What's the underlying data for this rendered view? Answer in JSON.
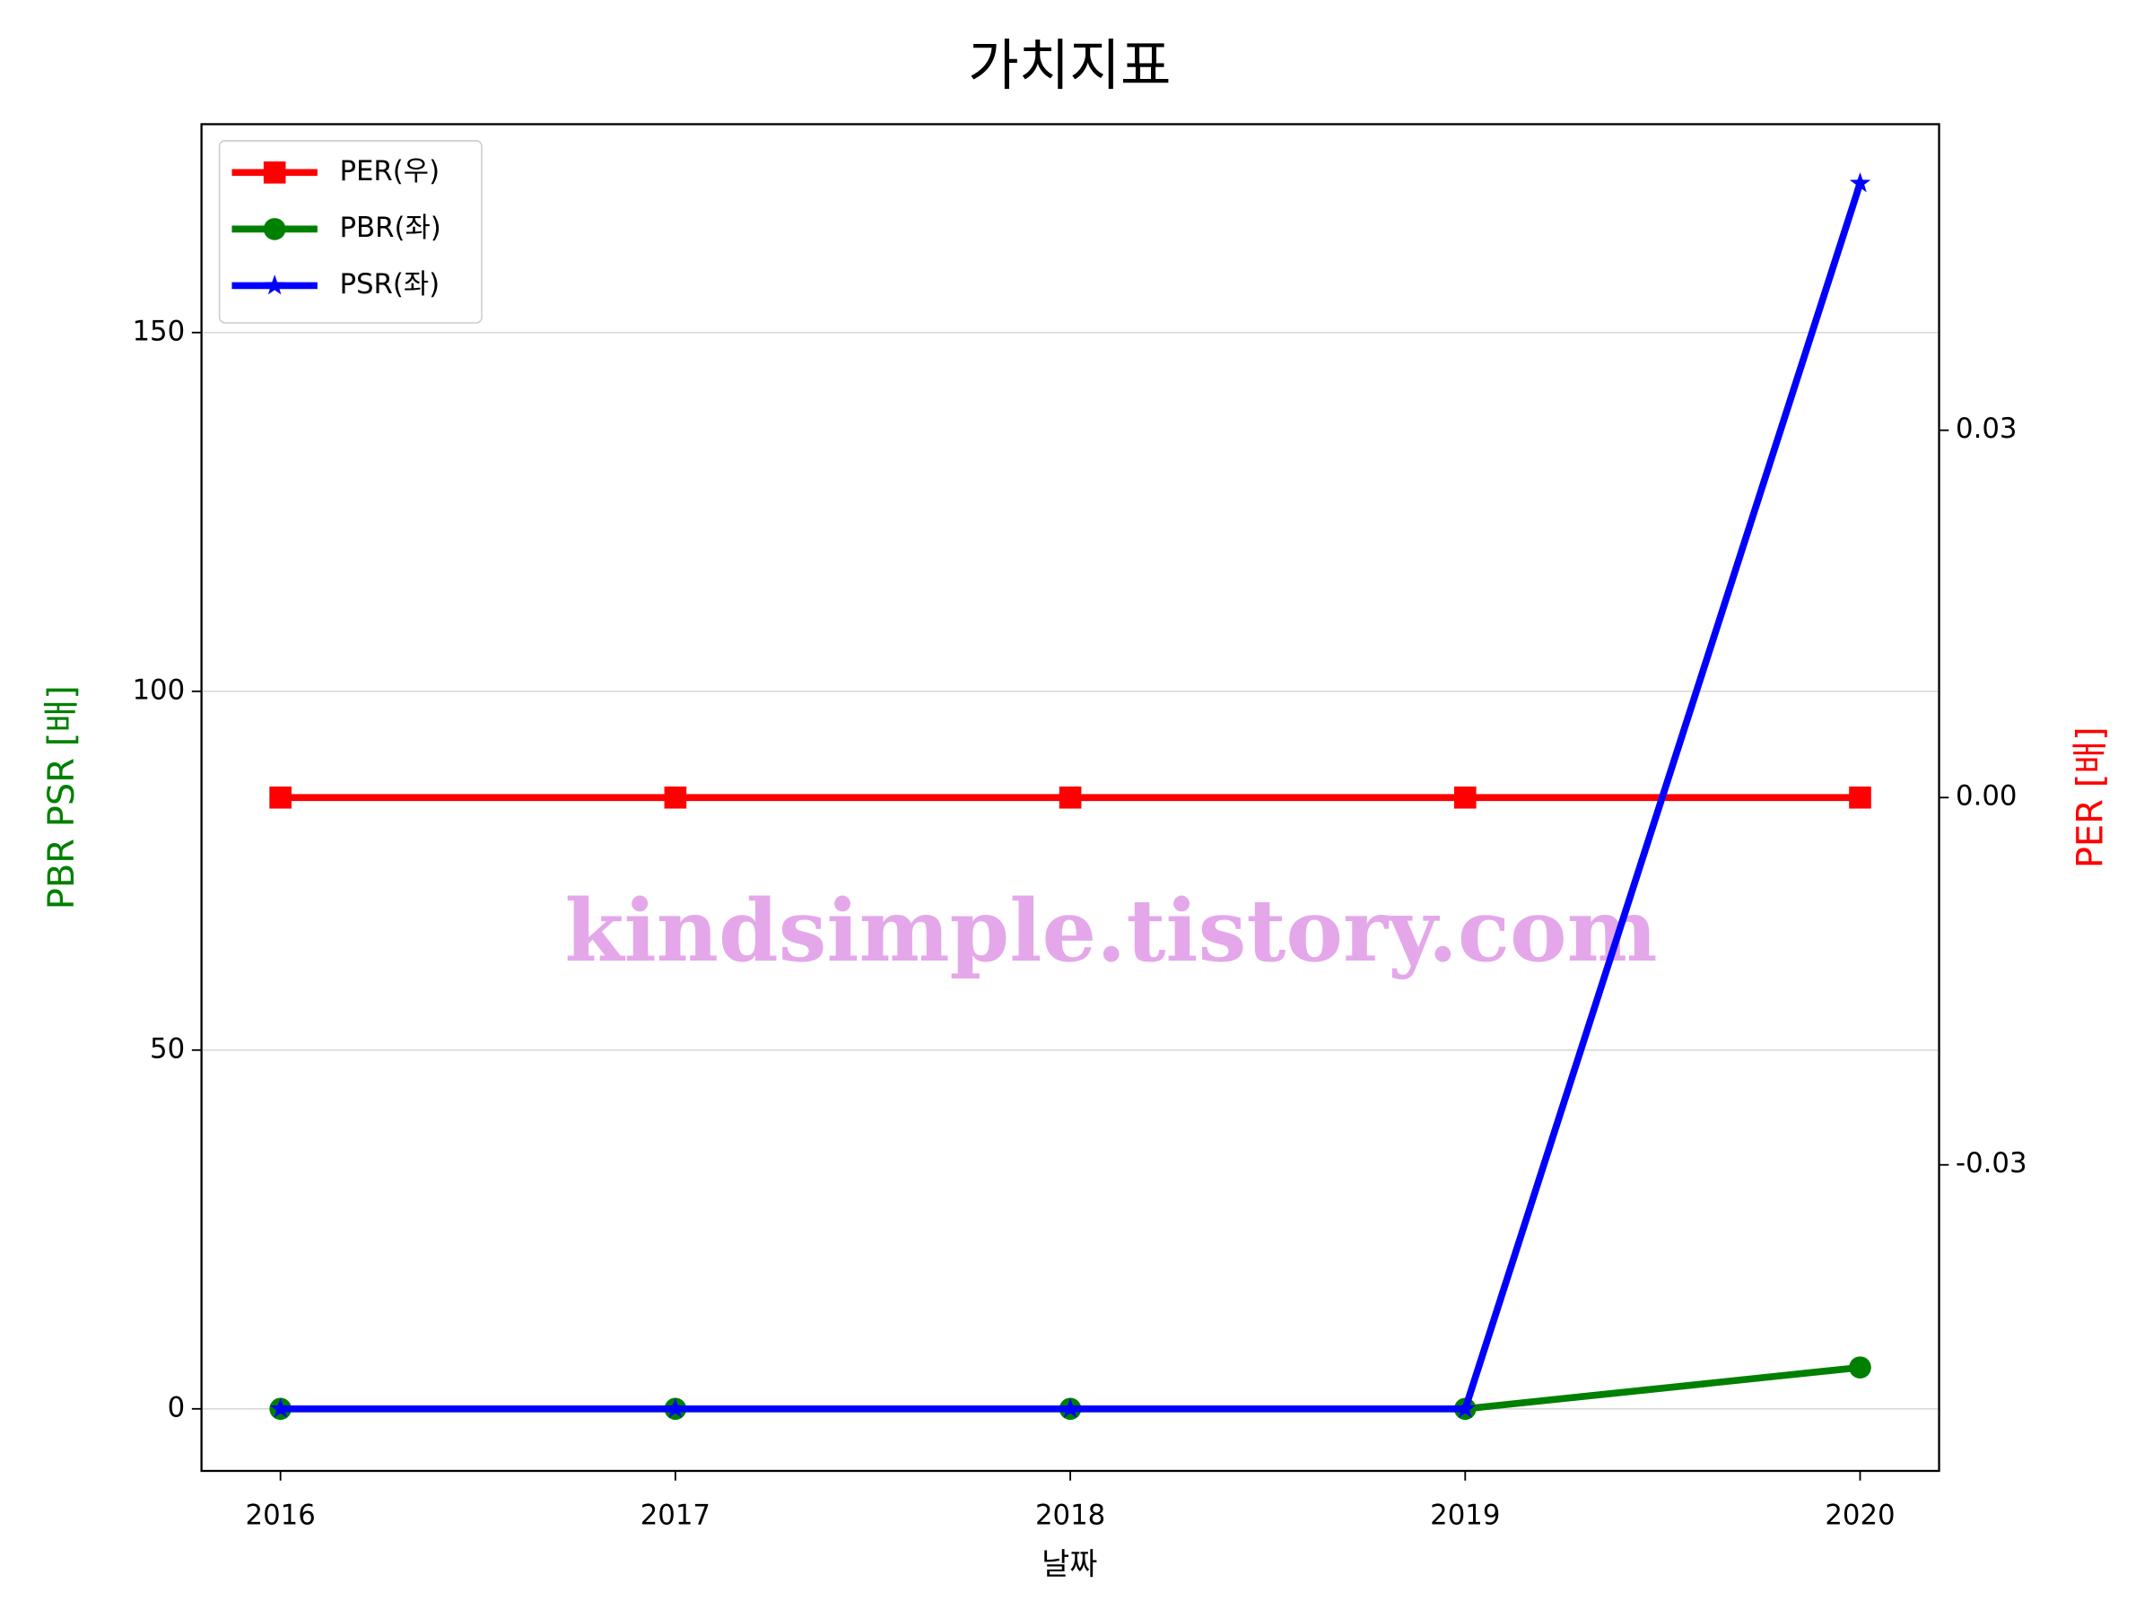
{
  "chart_data": {
    "type": "line",
    "title": "가치지표",
    "xlabel": "날짜",
    "ylabel": "PBR PSR [배]",
    "y2label": "PER [배]",
    "ylabel_color": "green",
    "y2label_color": "red",
    "watermark": "kindsimple.tistory.com",
    "x": [
      2016,
      2017,
      2018,
      2019,
      2020
    ],
    "xlim": [
      2015.8,
      2020.2
    ],
    "xticks": [
      2016,
      2017,
      2018,
      2019,
      2020
    ],
    "ylim": [
      -8.65,
      179.04
    ],
    "yticks": [
      0,
      50,
      100,
      150
    ],
    "y2lim": [
      -0.055,
      0.055
    ],
    "y2ticks": [
      {
        "value": -0.03,
        "label": "-0.03"
      },
      {
        "value": 0,
        "label": "0.00"
      },
      {
        "value": 0.03,
        "label": "0.03"
      }
    ],
    "grid": true,
    "legend": "upper left",
    "series": [
      {
        "name": "PER(우)",
        "color": "red",
        "marker": "square",
        "axis": "y2",
        "values": [
          0,
          0,
          0,
          0,
          0
        ]
      },
      {
        "name": "PBR(좌)",
        "color": "green",
        "marker": "circle",
        "values": [
          0,
          0,
          0,
          0,
          5.77
        ]
      },
      {
        "name": "PSR(좌)",
        "color": "blue",
        "marker": "star",
        "values": [
          0,
          0,
          0,
          0,
          170.8
        ]
      }
    ]
  }
}
